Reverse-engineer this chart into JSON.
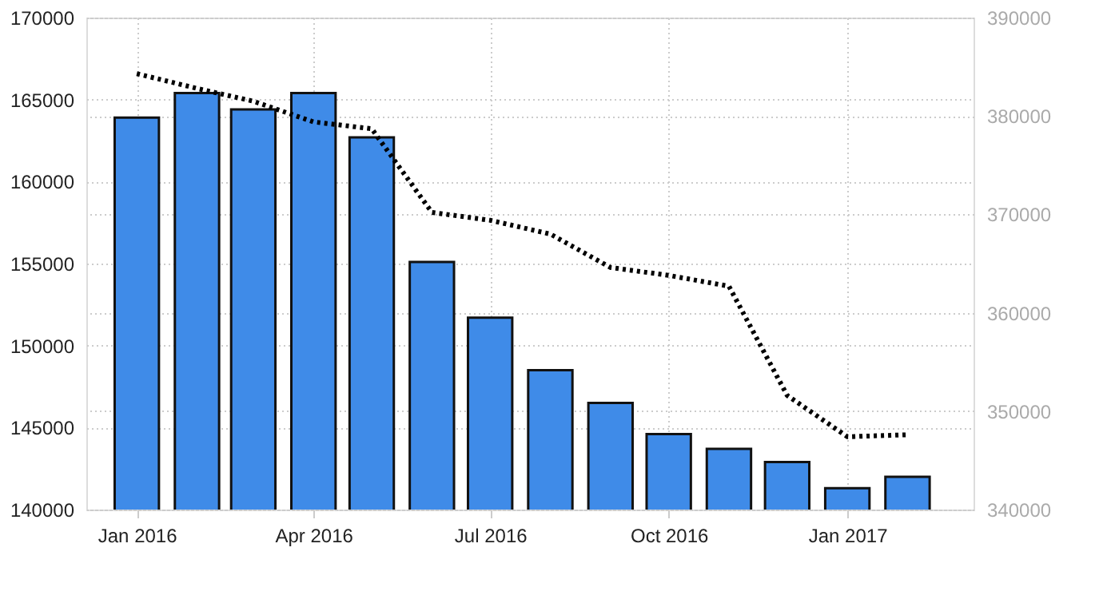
{
  "chart_data": {
    "type": "bar",
    "x": [
      "2016-01-01",
      "2016-02-01",
      "2016-03-01",
      "2016-04-01",
      "2016-05-01",
      "2016-06-01",
      "2016-07-01",
      "2016-08-01",
      "2016-09-01",
      "2016-10-01",
      "2016-11-01",
      "2016-12-01",
      "2017-01-01",
      "2017-02-01"
    ],
    "series": [
      {
        "color": "#3f8be8",
        "values": [
          163900,
          165400,
          164400,
          165400,
          162700,
          155100,
          151700,
          148500,
          146500,
          144600,
          143700,
          142900,
          141300,
          142000
        ]
      },
      {
        "type": "line",
        "axis": "y2",
        "color": "#000000",
        "line_style": "dotted",
        "values": [
          384300,
          382800,
          381500,
          379400,
          378700,
          370200,
          369400,
          368000,
          364600,
          363800,
          362700,
          351600,
          347400,
          347600
        ]
      }
    ],
    "xlim": [
      "2015-12-06",
      "2017-03-07"
    ],
    "xticks": [
      {
        "value": "2016-01-01",
        "label": "Jan 2016"
      },
      {
        "value": "2016-04-01",
        "label": "Apr 2016"
      },
      {
        "value": "2016-07-01",
        "label": "Jul 2016"
      },
      {
        "value": "2016-10-01",
        "label": "Oct 2016"
      },
      {
        "value": "2017-01-01",
        "label": "Jan 2017"
      }
    ],
    "ylim": [
      140000,
      170000
    ],
    "yticks": [
      140000,
      145000,
      150000,
      155000,
      160000,
      165000,
      170000
    ],
    "y2lim": [
      340000,
      390000
    ],
    "y2ticks": [
      340000,
      350000,
      360000,
      370000,
      380000,
      390000
    ],
    "grid": true,
    "marker": "none"
  }
}
